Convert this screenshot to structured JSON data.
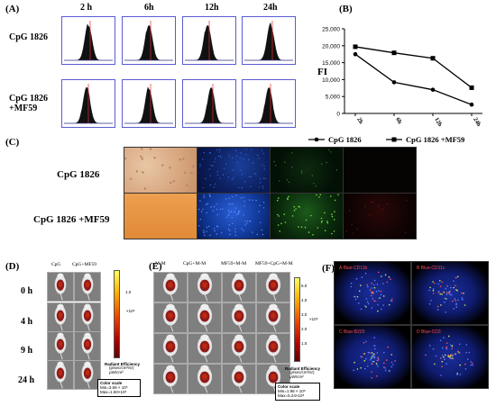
{
  "panels": {
    "A": {
      "label": "(A)",
      "timepoints": [
        "2 h",
        "6h",
        "12h",
        "24h"
      ],
      "rows": [
        "CpG 1826",
        "CpG 1826\n+MF59"
      ]
    },
    "B": {
      "label": "(B)"
    },
    "C": {
      "label": "(C)",
      "rows": [
        "CpG 1826",
        "CpG 1826 +MF59"
      ]
    },
    "D": {
      "label": "(D)",
      "columns": [
        "CpG",
        "CpG+MF59"
      ],
      "times": [
        "0 h",
        "4 h",
        "9 h",
        "24 h"
      ],
      "colorbar_ticks": [
        "1.0",
        "0.8",
        "0.6"
      ],
      "colorbar_unit": "×10⁶",
      "efficiency_title": "Radiant Efficiency",
      "efficiency_unit": "(p/sec/cm²/sr)\nμW/cm²",
      "scale_title": "Color scale",
      "scale_min": "Min=3.69 × 10⁵",
      "scale_max": "Max=1.50×10⁶"
    },
    "E": {
      "label": "(E)",
      "columns": [
        "M-M",
        "CpG+M-M",
        "MF59+M-M",
        "MF59+CpG+M-M"
      ],
      "colorbar_ticks": [
        "5.0",
        "4.0",
        "3.0",
        "2.0",
        "1.0"
      ],
      "colorbar_unit": "×10⁸",
      "efficiency_title": "Radiant Efficiency",
      "efficiency_unit": "(p/sec/cm²/sr)\nμW/cm²",
      "scale_title": "Color scale",
      "scale_min": "Min=1.98 × 10⁸",
      "scale_max": "Max=5.24×10⁸"
    },
    "F": {
      "label": "(F)",
      "tiles": [
        "A   Blue-CD11b",
        "B   Blue-CD11c",
        "C   Blue-B220",
        "D   Blue-CD3"
      ]
    }
  },
  "chart_data": {
    "type": "line",
    "categories": [
      "2h",
      "6h",
      "12h",
      "24h"
    ],
    "ylabel": "FI",
    "ylim": [
      0,
      25000
    ],
    "yticks": [
      "25,000",
      "20,000",
      "15,000",
      "10,000",
      "5,000",
      "0"
    ],
    "series": [
      {
        "name": "CpG 1826",
        "marker": "circle",
        "values": [
          17500,
          9200,
          7000,
          2600
        ]
      },
      {
        "name": "CpG 1826 +MF59",
        "marker": "square",
        "values": [
          19700,
          17900,
          16300,
          7600
        ]
      }
    ]
  }
}
